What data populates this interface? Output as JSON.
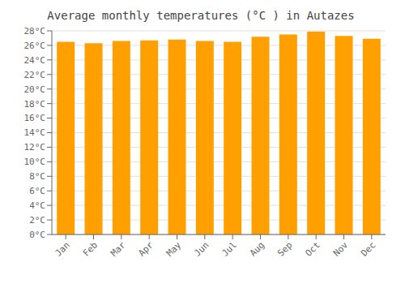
{
  "chart_data": {
    "type": "bar",
    "title": "Average monthly temperatures (°C ) in Autazes",
    "categories": [
      "Jan",
      "Feb",
      "Mar",
      "Apr",
      "May",
      "Jun",
      "Jul",
      "Aug",
      "Sep",
      "Oct",
      "Nov",
      "Dec"
    ],
    "values": [
      26.5,
      26.3,
      26.6,
      26.7,
      26.8,
      26.6,
      26.5,
      27.2,
      27.5,
      27.9,
      27.3,
      26.9
    ],
    "color": "#FFa000",
    "ylim": [
      0,
      28
    ],
    "yticks": [
      {
        "value": 0,
        "label": "0°C"
      },
      {
        "value": 2,
        "label": "2°C"
      },
      {
        "value": 4,
        "label": "4°C"
      },
      {
        "value": 6,
        "label": "6°C"
      },
      {
        "value": 8,
        "label": "8°C"
      },
      {
        "value": 10,
        "label": "10°C"
      },
      {
        "value": 12,
        "label": "12°C"
      },
      {
        "value": 14,
        "label": "14°C"
      },
      {
        "value": 16,
        "label": "16°C"
      },
      {
        "value": 18,
        "label": "18°C"
      },
      {
        "value": 20,
        "label": "20°C"
      },
      {
        "value": 22,
        "label": "22°C"
      },
      {
        "value": 24,
        "label": "24°C"
      },
      {
        "value": 26,
        "label": "26°C"
      },
      {
        "value": 28,
        "label": "28°C"
      }
    ],
    "grid": true
  }
}
